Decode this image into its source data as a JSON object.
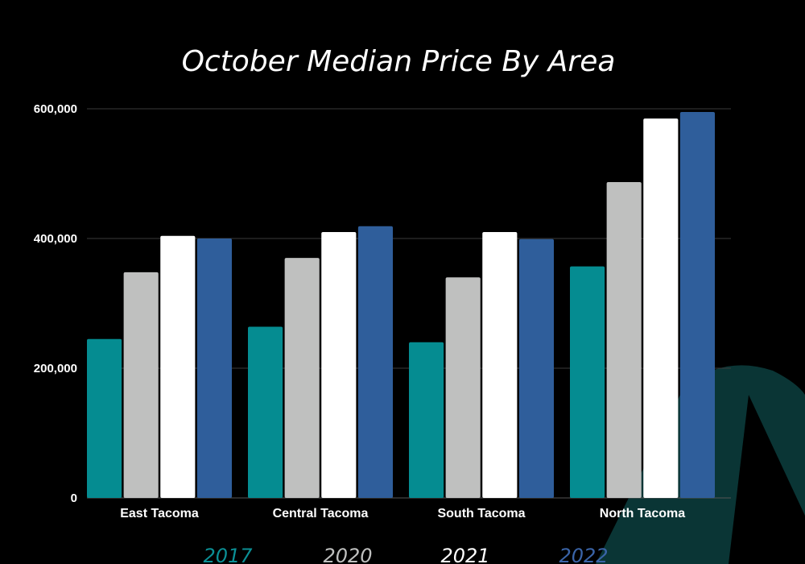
{
  "chart_data": {
    "type": "bar",
    "title": "October Median Price By Area",
    "categories": [
      "East Tacoma",
      "Central Tacoma",
      "South Tacoma",
      "North Tacoma"
    ],
    "series": [
      {
        "name": "2017",
        "color": "#058c91",
        "values": [
          245000,
          264000,
          240000,
          357000
        ]
      },
      {
        "name": "2020",
        "color": "#bfc0bf",
        "values": [
          348000,
          370000,
          340000,
          487000
        ]
      },
      {
        "name": "2021",
        "color": "#ffffff",
        "values": [
          404000,
          410000,
          410000,
          585000
        ]
      },
      {
        "name": "2022",
        "color": "#2f5e9b",
        "values": [
          400000,
          419000,
          399000,
          595000
        ]
      }
    ],
    "yticks": [
      {
        "value": 0,
        "label": "0"
      },
      {
        "value": 200000,
        "label": "200,000"
      },
      {
        "value": 400000,
        "label": "400,000"
      },
      {
        "value": 600000,
        "label": "600,000"
      }
    ],
    "ylim": [
      0,
      600000
    ],
    "grid": true,
    "legend_position": "bottom",
    "background": "#000000",
    "decor_color": "#0a3535"
  }
}
